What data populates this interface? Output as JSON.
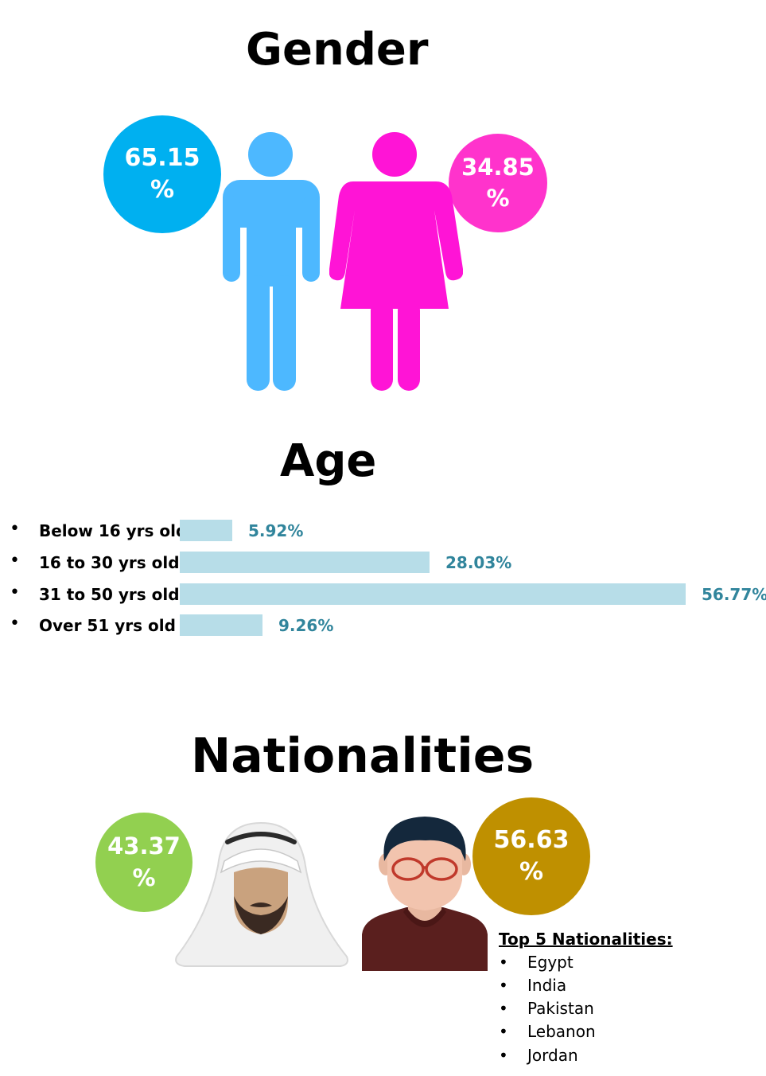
{
  "gender": {
    "title": "Gender",
    "male": {
      "value": "65.15",
      "unit": "%",
      "color": "#00b0f0",
      "icon": "male-person-icon",
      "icon_color": "#4db8ff"
    },
    "female": {
      "value": "34.85",
      "unit": "%",
      "color": "#ff33cc",
      "icon": "female-person-icon",
      "icon_color": "#ff14d6"
    }
  },
  "age": {
    "title": "Age",
    "bullet": "•",
    "groups": [
      {
        "label": "Below 16 yrs old",
        "display": "5.92%"
      },
      {
        "label": "16 to 30 yrs old",
        "display": "28.03%"
      },
      {
        "label": "31 to 50 yrs old",
        "display": "56.77%"
      },
      {
        "label": "Over 51 yrs old",
        "display": "9.26%"
      }
    ]
  },
  "nationalities": {
    "title": "Nationalities",
    "arab": {
      "value": "43.37",
      "unit": "%",
      "color": "#92d050",
      "icon": "arab-man-icon"
    },
    "other": {
      "value": "56.63",
      "unit": "%",
      "color": "#bf9000",
      "icon": "man-with-glasses-icon"
    },
    "top5_heading": "Top 5 Nationalities:",
    "top5": [
      "Egypt",
      "India",
      "Pakistan",
      "Lebanon",
      "Jordan"
    ]
  },
  "chart_data": {
    "type": "bar",
    "orientation": "horizontal",
    "categories": [
      "Below 16 yrs old",
      "16 to 30 yrs old",
      "31 to 50 yrs old",
      "Over 51 yrs old"
    ],
    "values": [
      5.92,
      28.03,
      56.77,
      9.26
    ],
    "bar_color": "#b7dde8",
    "label_color": "#31859c",
    "xlim": [
      0,
      56.77
    ]
  }
}
